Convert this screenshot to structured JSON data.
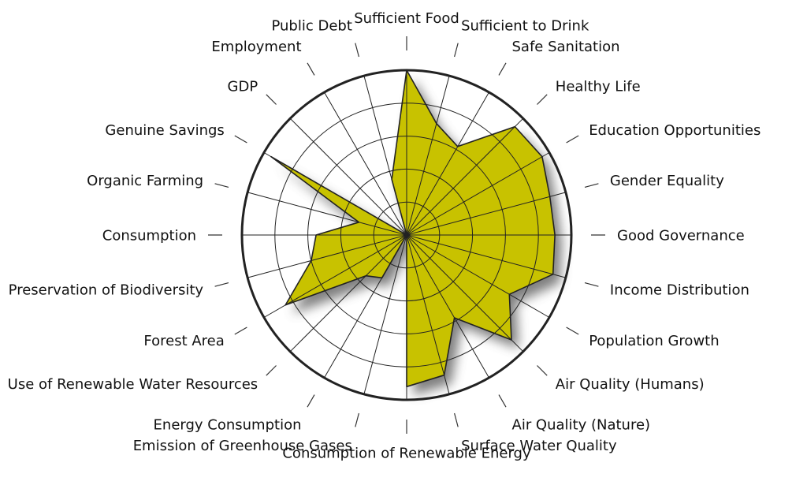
{
  "chart_data": {
    "type": "radar",
    "title": "",
    "categories": [
      "Sufficient Food",
      "Sufficient to Drink",
      "Safe Sanitation",
      "Healthy Life",
      "Education Opportunities",
      "Gender Equality",
      "Good Governance",
      "Income Distribution",
      "Population Growth",
      "Air Quality (Humans)",
      "Air Quality (Nature)",
      "Surface Water Quality",
      "Consumption of Renewable Energy",
      "Emission of Greenhouse Gases",
      "Energy Consumption",
      "Use of Renewable Water Resources",
      "Forest Area",
      "Preservation of Biodiversity",
      "Consumption",
      "Organic Farming",
      "Genuine Savings",
      "GDP",
      "Employment",
      "Public Debt"
    ],
    "series": [
      {
        "values": [
          1.0,
          0.7,
          0.62,
          0.93,
          0.95,
          0.9,
          0.9,
          0.92,
          0.72,
          0.9,
          0.58,
          0.88,
          0.92,
          0.0,
          0.3,
          0.35,
          0.85,
          0.6,
          0.55,
          0.3,
          0.95,
          0.0,
          0.0,
          0.35
        ]
      }
    ],
    "rings": 5,
    "range": [
      0,
      1
    ],
    "colors": {
      "fill": "#c8c200",
      "outline": "#222222",
      "grid": "#222222",
      "shadow": "#555555"
    }
  }
}
